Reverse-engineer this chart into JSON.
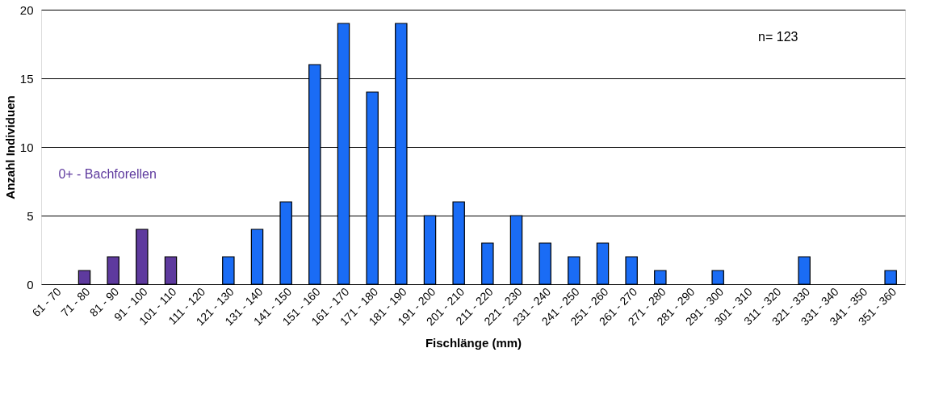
{
  "chart_data": {
    "type": "bar",
    "xlabel": "Fischlänge (mm)",
    "ylabel": "Anzahl Individuen",
    "categories": [
      "61 - 70",
      "71 - 80",
      "81 - 90",
      "91 - 100",
      "101 - 110",
      "111 - 120",
      "121 - 130",
      "131 - 140",
      "141 - 150",
      "151 - 160",
      "161 - 170",
      "171 - 180",
      "181 - 190",
      "191 - 200",
      "201 - 210",
      "211 - 220",
      "221 - 230",
      "231 - 240",
      "241 - 250",
      "251 - 260",
      "261 - 270",
      "271 - 280",
      "281 - 290",
      "291 - 300",
      "301 - 310",
      "311 - 320",
      "321 - 330",
      "331 - 340",
      "341 - 350",
      "351 - 360"
    ],
    "values": [
      0,
      1,
      2,
      4,
      2,
      0,
      2,
      4,
      6,
      16,
      19,
      14,
      19,
      5,
      6,
      3,
      5,
      3,
      2,
      3,
      2,
      1,
      0,
      1,
      0,
      0,
      2,
      0,
      0,
      1
    ],
    "colors": [
      "#5e3a9e",
      "#5e3a9e",
      "#5e3a9e",
      "#5e3a9e",
      "#5e3a9e",
      "#1a6cf5",
      "#1a6cf5",
      "#1a6cf5",
      "#1a6cf5",
      "#1a6cf5",
      "#1a6cf5",
      "#1a6cf5",
      "#1a6cf5",
      "#1a6cf5",
      "#1a6cf5",
      "#1a6cf5",
      "#1a6cf5",
      "#1a6cf5",
      "#1a6cf5",
      "#1a6cf5",
      "#1a6cf5",
      "#1a6cf5",
      "#1a6cf5",
      "#1a6cf5",
      "#1a6cf5",
      "#1a6cf5",
      "#1a6cf5",
      "#1a6cf5",
      "#1a6cf5",
      "#1a6cf5"
    ],
    "ylim": [
      0,
      20
    ],
    "yticks": [
      0,
      5,
      10,
      15,
      20
    ],
    "grid": "y",
    "annotations": [
      "n= 123",
      "0+ - Bachforellen"
    ]
  }
}
